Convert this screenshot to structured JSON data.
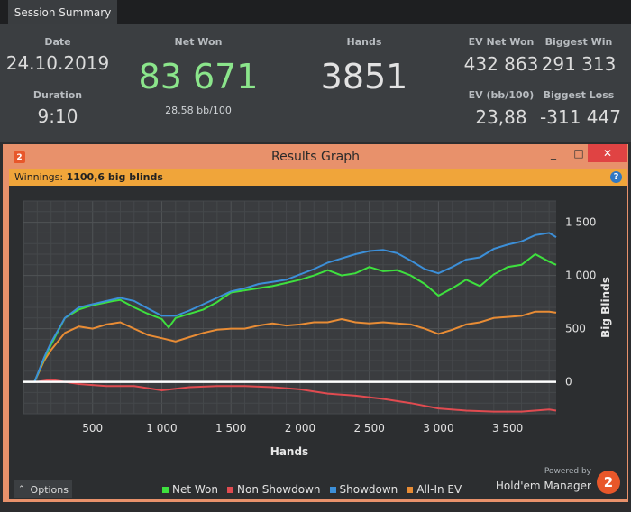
{
  "tab": {
    "label": "Session Summary"
  },
  "summary": {
    "date_label": "Date",
    "date": "24.10.2019",
    "duration_label": "Duration",
    "duration": "9:10",
    "net_won_label": "Net Won",
    "net_won": "83 671",
    "bb100": "28,58 bb/100",
    "hands_label": "Hands",
    "hands": "3851",
    "ev_net_won_label": "EV Net Won",
    "ev_net_won": "432 863",
    "ev_bb100_label": "EV (bb/100)",
    "ev_bb100": "23,88",
    "biggest_win_label": "Biggest Win",
    "biggest_win": "291 313",
    "biggest_loss_label": "Biggest Loss",
    "biggest_loss": "-311 447"
  },
  "window": {
    "app_badge": "2",
    "title": "Results Graph",
    "minimize": "_",
    "maximize": "□",
    "close": "✕"
  },
  "winnings": {
    "label": "Winnings:",
    "value": "1100,6 big blinds",
    "help": "?"
  },
  "options": {
    "label": "Options"
  },
  "branding": {
    "powered_by": "Powered by",
    "name": "Hold'em Manager",
    "badge": "2"
  },
  "colors": {
    "net_won": "#3ee03e",
    "non_showdown": "#e04b50",
    "showdown": "#3c8fd8",
    "all_in_ev": "#e88c35",
    "accent": "#e8916b"
  },
  "chart_data": {
    "type": "line",
    "xlabel": "Hands",
    "ylabel": "Big Blinds",
    "xlim": [
      0,
      3851
    ],
    "ylim": [
      -300,
      1700
    ],
    "x_ticks": [
      500,
      1000,
      1500,
      2000,
      2500,
      3000,
      3500
    ],
    "x_tick_labels": [
      "500",
      "1 000",
      "1 500",
      "2 000",
      "2 500",
      "3 000",
      "3 500"
    ],
    "y_ticks": [
      0,
      500,
      1000,
      1500
    ],
    "y_tick_labels": [
      "0",
      "500",
      "1 000",
      "1 500"
    ],
    "legend_position": "bottom",
    "series": [
      {
        "name": "Net Won",
        "color": "#3ee03e",
        "x": [
          0,
          80,
          150,
          200,
          300,
          400,
          500,
          650,
          700,
          800,
          900,
          1000,
          1050,
          1100,
          1200,
          1300,
          1400,
          1500,
          1600,
          1700,
          1800,
          1900,
          2000,
          2100,
          2200,
          2300,
          2400,
          2500,
          2600,
          2700,
          2800,
          2900,
          3000,
          3100,
          3200,
          3300,
          3400,
          3500,
          3600,
          3700,
          3800,
          3851
        ],
        "y": [
          0,
          0,
          220,
          350,
          600,
          680,
          720,
          760,
          770,
          700,
          640,
          590,
          510,
          600,
          640,
          680,
          750,
          840,
          860,
          880,
          900,
          930,
          960,
          1000,
          1050,
          1000,
          1020,
          1080,
          1040,
          1050,
          1000,
          920,
          810,
          880,
          960,
          900,
          1010,
          1080,
          1100,
          1200,
          1130,
          1100
        ]
      },
      {
        "name": "Non Showdown",
        "color": "#e04b50",
        "x": [
          0,
          100,
          200,
          400,
          600,
          800,
          1000,
          1200,
          1400,
          1600,
          1800,
          2000,
          2200,
          2400,
          2600,
          2800,
          3000,
          3200,
          3400,
          3600,
          3800,
          3851
        ],
        "y": [
          0,
          0,
          20,
          -20,
          -40,
          -40,
          -80,
          -50,
          -40,
          -40,
          -50,
          -70,
          -110,
          -130,
          -160,
          -200,
          -250,
          -270,
          -280,
          -280,
          -260,
          -270
        ]
      },
      {
        "name": "Showdown",
        "color": "#3c8fd8",
        "x": [
          0,
          80,
          150,
          200,
          300,
          400,
          500,
          700,
          800,
          900,
          1000,
          1100,
          1200,
          1300,
          1400,
          1500,
          1600,
          1700,
          1800,
          1900,
          2000,
          2100,
          2200,
          2300,
          2400,
          2500,
          2600,
          2700,
          2800,
          2900,
          3000,
          3100,
          3200,
          3300,
          3400,
          3500,
          3600,
          3700,
          3800,
          3851
        ],
        "y": [
          0,
          0,
          230,
          370,
          600,
          700,
          730,
          790,
          760,
          690,
          620,
          620,
          670,
          730,
          790,
          850,
          880,
          920,
          940,
          960,
          1010,
          1060,
          1120,
          1160,
          1200,
          1230,
          1240,
          1210,
          1140,
          1060,
          1020,
          1080,
          1150,
          1170,
          1250,
          1290,
          1320,
          1380,
          1400,
          1360
        ]
      },
      {
        "name": "All-In EV",
        "color": "#e88c35",
        "x": [
          0,
          80,
          150,
          200,
          300,
          400,
          500,
          600,
          700,
          800,
          900,
          1000,
          1100,
          1200,
          1300,
          1400,
          1500,
          1600,
          1700,
          1800,
          1900,
          2000,
          2100,
          2200,
          2300,
          2400,
          2500,
          2600,
          2700,
          2800,
          2900,
          3000,
          3100,
          3200,
          3300,
          3400,
          3500,
          3600,
          3700,
          3800,
          3851
        ],
        "y": [
          0,
          0,
          200,
          300,
          460,
          520,
          500,
          540,
          560,
          500,
          440,
          410,
          380,
          420,
          460,
          490,
          500,
          500,
          530,
          550,
          530,
          540,
          560,
          560,
          590,
          560,
          550,
          560,
          550,
          540,
          500,
          450,
          490,
          540,
          560,
          600,
          610,
          620,
          660,
          660,
          650
        ]
      }
    ]
  }
}
